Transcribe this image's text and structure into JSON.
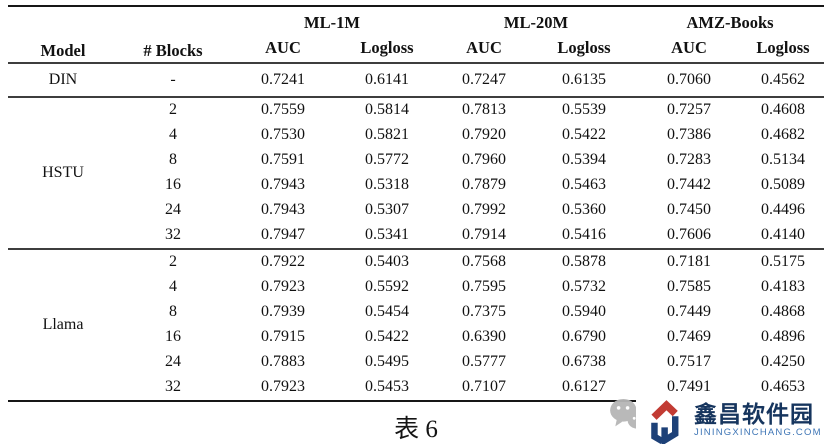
{
  "table": {
    "caption": "表 6",
    "headers": {
      "model": "Model",
      "blocks": "# Blocks",
      "auc": "AUC",
      "logloss": "Logloss"
    },
    "col_groups": [
      {
        "label": "ML-1M"
      },
      {
        "label": "ML-20M"
      },
      {
        "label": "AMZ-Books"
      }
    ],
    "sections": [
      {
        "model": "DIN",
        "rows": [
          {
            "blocks": "-",
            "values": [
              "0.7241",
              "0.6141",
              "0.7247",
              "0.6135",
              "0.7060",
              "0.4562"
            ]
          }
        ]
      },
      {
        "model": "HSTU",
        "rows": [
          {
            "blocks": "2",
            "values": [
              "0.7559",
              "0.5814",
              "0.7813",
              "0.5539",
              "0.7257",
              "0.4608"
            ]
          },
          {
            "blocks": "4",
            "values": [
              "0.7530",
              "0.5821",
              "0.7920",
              "0.5422",
              "0.7386",
              "0.4682"
            ]
          },
          {
            "blocks": "8",
            "values": [
              "0.7591",
              "0.5772",
              "0.7960",
              "0.5394",
              "0.7283",
              "0.5134"
            ]
          },
          {
            "blocks": "16",
            "values": [
              "0.7943",
              "0.5318",
              "0.7879",
              "0.5463",
              "0.7442",
              "0.5089"
            ]
          },
          {
            "blocks": "24",
            "values": [
              "0.7943",
              "0.5307",
              "0.7992",
              "0.5360",
              "0.7450",
              "0.4496"
            ]
          },
          {
            "blocks": "32",
            "values": [
              "0.7947",
              "0.5341",
              "0.7914",
              "0.5416",
              "0.7606",
              "0.4140"
            ]
          }
        ]
      },
      {
        "model": "Llama",
        "rows": [
          {
            "blocks": "2",
            "values": [
              "0.7922",
              "0.5403",
              "0.7568",
              "0.5878",
              "0.7181",
              "0.5175"
            ]
          },
          {
            "blocks": "4",
            "values": [
              "0.7923",
              "0.5592",
              "0.7595",
              "0.5732",
              "0.7585",
              "0.4183"
            ]
          },
          {
            "blocks": "8",
            "values": [
              "0.7939",
              "0.5454",
              "0.7375",
              "0.5940",
              "0.7449",
              "0.4868"
            ]
          },
          {
            "blocks": "16",
            "values": [
              "0.7915",
              "0.5422",
              "0.6390",
              "0.6790",
              "0.7469",
              "0.4896"
            ]
          },
          {
            "blocks": "24",
            "values": [
              "0.7883",
              "0.5495",
              "0.5777",
              "0.6738",
              "0.7517",
              "0.4250"
            ]
          },
          {
            "blocks": "32",
            "values": [
              "0.7923",
              "0.5453",
              "0.7107",
              "0.6127",
              "0.7491",
              "0.4653"
            ]
          }
        ]
      }
    ]
  },
  "watermark": {
    "logo_title": "鑫昌软件园",
    "logo_subtitle": "JININGXINCHANG.COM",
    "colors": {
      "navy": "#1d4178",
      "red": "#c23b33",
      "sub_blue": "#3f76b6",
      "wechat_gray": "#b6b6b6"
    }
  }
}
